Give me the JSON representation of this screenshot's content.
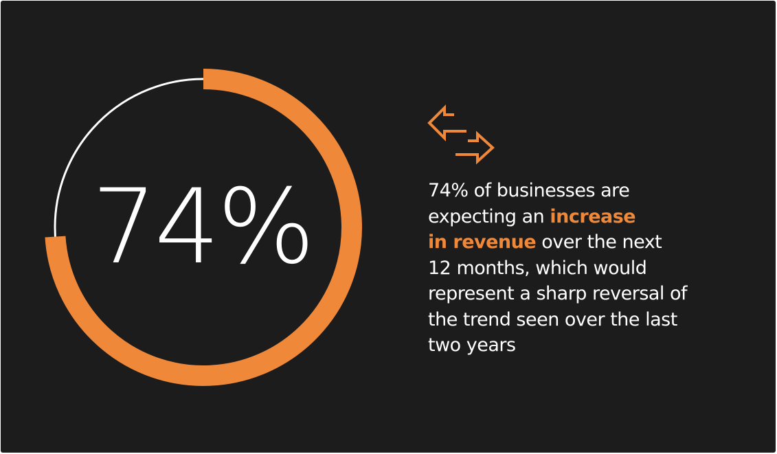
{
  "chart_data": {
    "type": "donut",
    "values": [
      74
    ],
    "value_labels": [
      "74%"
    ],
    "color": "#f0883a",
    "track_color": "#ffffff",
    "highlight_color": "#f0883a",
    "caption_lines": [
      [
        {
          "text": "74% of businesses are",
          "highlight": false
        }
      ],
      [
        {
          "text": "expecting an",
          "highlight": false
        },
        {
          "text": "increase",
          "highlight": true
        }
      ],
      [
        {
          "text": "in revenue",
          "highlight": true
        },
        {
          "text": "over the next",
          "highlight": false
        }
      ],
      [
        {
          "text": "12 months, which would",
          "highlight": false
        }
      ],
      [
        {
          "text": "represent a sharp reversal of",
          "highlight": false
        }
      ],
      [
        {
          "text": "the trend seen over the last",
          "highlight": false
        }
      ],
      [
        {
          "text": "two years",
          "highlight": false
        }
      ]
    ]
  }
}
